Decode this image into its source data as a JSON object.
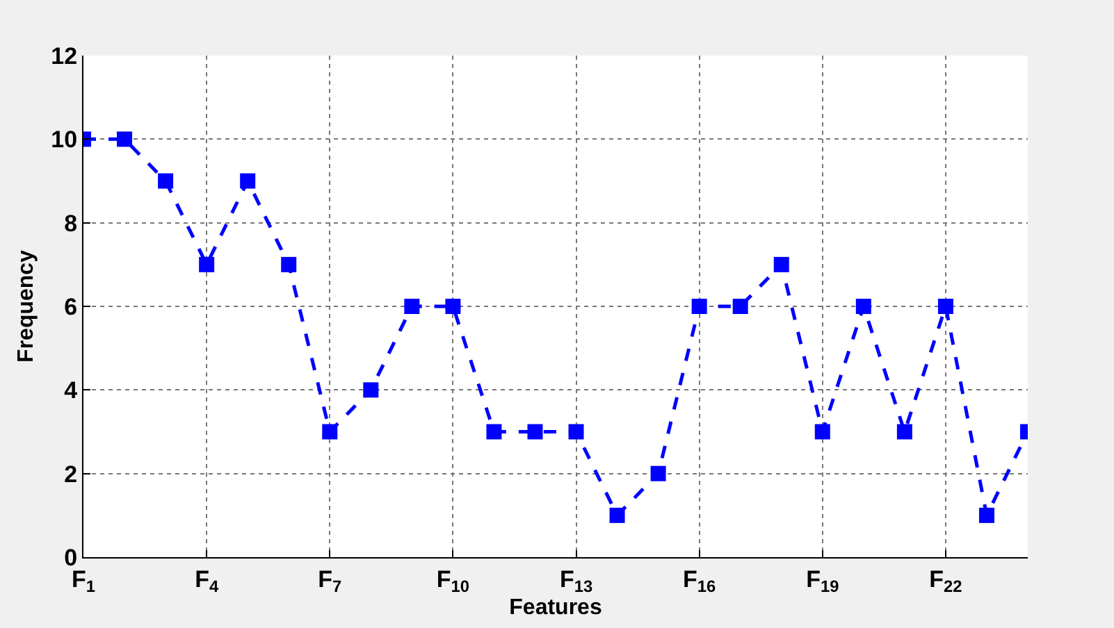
{
  "chart_data": {
    "type": "line",
    "xlabel": "Features",
    "ylabel": "Frequency",
    "x": [
      1,
      2,
      3,
      4,
      5,
      6,
      7,
      8,
      9,
      10,
      11,
      12,
      13,
      14,
      15,
      16,
      17,
      18,
      19,
      20,
      21,
      22,
      23,
      24
    ],
    "series": [
      {
        "color": "#0000ff",
        "values": [
          10,
          10,
          9,
          7,
          9,
          7,
          3,
          4,
          6,
          6,
          3,
          3,
          3,
          1,
          2,
          6,
          6,
          7,
          3,
          6,
          3,
          6,
          1,
          3
        ]
      }
    ],
    "xlim": [
      1,
      24
    ],
    "xticks": [
      {
        "value": 1,
        "label": "F$_{1}$"
      },
      {
        "value": 4,
        "label": "F$_{4}$"
      },
      {
        "value": 7,
        "label": "F$_{7}$"
      },
      {
        "value": 10,
        "label": "F$_{10}$"
      },
      {
        "value": 13,
        "label": "F$_{13}$"
      },
      {
        "value": 16,
        "label": "F$_{16}$"
      },
      {
        "value": 19,
        "label": "F$_{19}$"
      },
      {
        "value": 22,
        "label": "F$_{22}$"
      }
    ],
    "ylim": [
      0,
      12
    ],
    "yticks": [
      0,
      2,
      4,
      6,
      8,
      10,
      12
    ],
    "grid": true,
    "marker": "square",
    "line_style": "dashed"
  }
}
